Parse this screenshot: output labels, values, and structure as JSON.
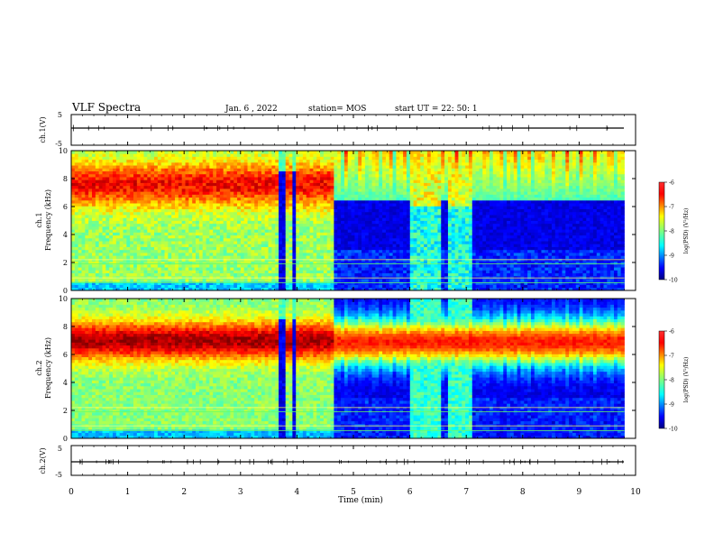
{
  "header": {
    "title": "VLF Spectra",
    "date": "Jan. 6 , 2022",
    "station": "station= MOS",
    "start_ut": "start UT =   22: 50: 1"
  },
  "chart_data": [
    {
      "type": "line",
      "panel": "ch1-waveform",
      "ylabel": "ch.1(V)",
      "ylim": [
        -5,
        5
      ],
      "yticks": [
        "5",
        "-5"
      ],
      "series": [
        {
          "values_description_level": 0
        }
      ],
      "xlim": [
        0,
        10
      ]
    },
    {
      "type": "heatmap",
      "panel": "ch1-spectrogram",
      "ylabel": "ch.1\nFrequency (kHz)",
      "ylabel_lines": [
        "ch.1",
        "Frequency (kHz)"
      ],
      "ylim": [
        0,
        10
      ],
      "yticks": [
        "0",
        "2",
        "4",
        "6",
        "8",
        "10"
      ],
      "xlim": [
        0,
        10
      ],
      "colorbar": {
        "label": "log(PSD) (V²/Hz)",
        "range": [
          -10,
          -6
        ],
        "ticks": [
          "-6",
          "-7",
          "-8",
          "-9",
          "-10"
        ]
      },
      "dark_gaps_min": [
        [
          3.7,
          3.82
        ],
        [
          3.9,
          4.0
        ],
        [
          4.65,
          9.8
        ]
      ],
      "burst_intervals_min": [
        [
          0.0,
          3.7
        ],
        [
          4.0,
          4.65
        ]
      ]
    },
    {
      "type": "heatmap",
      "panel": "ch2-spectrogram",
      "ylabel": "ch.2\nFrequency (kHz)",
      "ylabel_lines": [
        "ch.2",
        "Frequency (kHz)"
      ],
      "ylim": [
        0,
        10
      ],
      "yticks": [
        "0",
        "2",
        "4",
        "6",
        "8",
        "10"
      ],
      "xlim": [
        0,
        10
      ],
      "colorbar": {
        "label": "log(PSD) (V²/Hz)",
        "range": [
          -10,
          -6
        ],
        "ticks": [
          "-6",
          "-7",
          "-8",
          "-9",
          "-10"
        ]
      }
    },
    {
      "type": "line",
      "panel": "ch2-waveform",
      "ylabel": "ch.2(V)",
      "ylim": [
        -5,
        5
      ],
      "yticks": [
        "5",
        "-5"
      ],
      "xlim": [
        0,
        10
      ]
    }
  ],
  "xaxis": {
    "label": "Time (min)",
    "ticks": [
      "0",
      "1",
      "2",
      "3",
      "4",
      "5",
      "6",
      "7",
      "8",
      "9",
      "10"
    ],
    "data_end_min": 9.8
  },
  "colors": {
    "jet": [
      "#00007f",
      "#0000ff",
      "#007fff",
      "#00ffff",
      "#7fff7f",
      "#ffff00",
      "#ff7f00",
      "#ff0000",
      "#7f0000"
    ],
    "background_dark": "#000036"
  }
}
